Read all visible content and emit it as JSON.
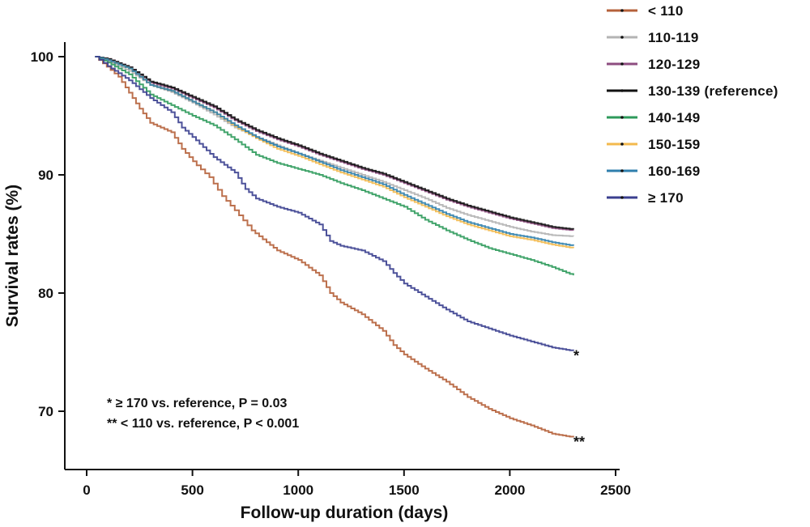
{
  "chart_data": {
    "type": "line",
    "title": "",
    "xlabel": "Follow-up duration (days)",
    "ylabel": "Survival rates (%)",
    "xlim": [
      0,
      2500
    ],
    "ylim": [
      65,
      101
    ],
    "xticks": [
      0,
      500,
      1000,
      1500,
      2000,
      2500
    ],
    "yticks": [
      70,
      80,
      90,
      100
    ],
    "grid": false,
    "legend_position": "top-right",
    "series": [
      {
        "name": "< 110",
        "color": "#b5603a",
        "points": [
          [
            40,
            100
          ],
          [
            150,
            98.3
          ],
          [
            250,
            95.6
          ],
          [
            300,
            94.4
          ],
          [
            400,
            93.6
          ],
          [
            450,
            92.2
          ],
          [
            520,
            90.8
          ],
          [
            580,
            89.8
          ],
          [
            640,
            88.2
          ],
          [
            700,
            87
          ],
          [
            780,
            85.3
          ],
          [
            850,
            84.3
          ],
          [
            900,
            83.6
          ],
          [
            1000,
            82.8
          ],
          [
            1100,
            81.5
          ],
          [
            1150,
            80
          ],
          [
            1200,
            79.2
          ],
          [
            1300,
            78.2
          ],
          [
            1400,
            76.8
          ],
          [
            1450,
            75.6
          ],
          [
            1500,
            74.8
          ],
          [
            1600,
            73.6
          ],
          [
            1700,
            72.5
          ],
          [
            1800,
            71.2
          ],
          [
            1900,
            70.2
          ],
          [
            2000,
            69.4
          ],
          [
            2100,
            68.8
          ],
          [
            2200,
            68.1
          ],
          [
            2300,
            67.8
          ]
        ]
      },
      {
        "name": "110-119",
        "color": "#b3b3b3",
        "points": [
          [
            40,
            100
          ],
          [
            100,
            99.6
          ],
          [
            200,
            98.8
          ],
          [
            300,
            97.6
          ],
          [
            400,
            97
          ],
          [
            500,
            96.1
          ],
          [
            600,
            95.1
          ],
          [
            700,
            94
          ],
          [
            800,
            93.2
          ],
          [
            900,
            92.5
          ],
          [
            1000,
            91.8
          ],
          [
            1100,
            91.2
          ],
          [
            1200,
            90.6
          ],
          [
            1300,
            90
          ],
          [
            1400,
            89.4
          ],
          [
            1500,
            88.7
          ],
          [
            1600,
            88
          ],
          [
            1700,
            87.2
          ],
          [
            1800,
            86.6
          ],
          [
            1900,
            86.1
          ],
          [
            2000,
            85.6
          ],
          [
            2100,
            85.2
          ],
          [
            2200,
            84.9
          ],
          [
            2300,
            84.8
          ]
        ]
      },
      {
        "name": "120-129",
        "color": "#8e4d80",
        "points": [
          [
            40,
            100
          ],
          [
            100,
            99.8
          ],
          [
            200,
            99.1
          ],
          [
            300,
            97.8
          ],
          [
            400,
            97.3
          ],
          [
            500,
            96.5
          ],
          [
            600,
            95.7
          ],
          [
            700,
            94.6
          ],
          [
            800,
            93.7
          ],
          [
            900,
            93
          ],
          [
            1000,
            92.4
          ],
          [
            1100,
            91.7
          ],
          [
            1200,
            91.1
          ],
          [
            1300,
            90.5
          ],
          [
            1400,
            90
          ],
          [
            1500,
            89.3
          ],
          [
            1600,
            88.6
          ],
          [
            1700,
            87.9
          ],
          [
            1800,
            87.3
          ],
          [
            1900,
            86.8
          ],
          [
            2000,
            86.3
          ],
          [
            2100,
            85.9
          ],
          [
            2200,
            85.5
          ],
          [
            2300,
            85.3
          ]
        ]
      },
      {
        "name": "130-139 (reference)",
        "color": "#111111",
        "points": [
          [
            40,
            100
          ],
          [
            100,
            99.8
          ],
          [
            200,
            99.1
          ],
          [
            300,
            97.9
          ],
          [
            400,
            97.4
          ],
          [
            500,
            96.6
          ],
          [
            600,
            95.8
          ],
          [
            700,
            94.7
          ],
          [
            800,
            93.8
          ],
          [
            900,
            93.1
          ],
          [
            1000,
            92.5
          ],
          [
            1100,
            91.8
          ],
          [
            1200,
            91.2
          ],
          [
            1300,
            90.6
          ],
          [
            1400,
            90.1
          ],
          [
            1500,
            89.4
          ],
          [
            1600,
            88.7
          ],
          [
            1700,
            88
          ],
          [
            1800,
            87.4
          ],
          [
            1900,
            86.9
          ],
          [
            2000,
            86.4
          ],
          [
            2100,
            86
          ],
          [
            2200,
            85.6
          ],
          [
            2300,
            85.4
          ]
        ]
      },
      {
        "name": "140-149",
        "color": "#2e9a5b",
        "points": [
          [
            40,
            100
          ],
          [
            100,
            99.5
          ],
          [
            200,
            98.5
          ],
          [
            300,
            96.8
          ],
          [
            400,
            95.9
          ],
          [
            500,
            95
          ],
          [
            600,
            94.2
          ],
          [
            700,
            93
          ],
          [
            800,
            91.7
          ],
          [
            900,
            91
          ],
          [
            1000,
            90.5
          ],
          [
            1100,
            90
          ],
          [
            1200,
            89.3
          ],
          [
            1300,
            88.7
          ],
          [
            1400,
            88
          ],
          [
            1500,
            87.3
          ],
          [
            1600,
            86.2
          ],
          [
            1700,
            85.3
          ],
          [
            1800,
            84.5
          ],
          [
            1900,
            83.8
          ],
          [
            2000,
            83.3
          ],
          [
            2100,
            82.8
          ],
          [
            2200,
            82.2
          ],
          [
            2300,
            81.5
          ]
        ]
      },
      {
        "name": "150-159",
        "color": "#f3b94d",
        "points": [
          [
            40,
            100
          ],
          [
            100,
            99.7
          ],
          [
            200,
            99
          ],
          [
            300,
            97.6
          ],
          [
            400,
            97.1
          ],
          [
            500,
            96.2
          ],
          [
            600,
            95.3
          ],
          [
            700,
            94.1
          ],
          [
            800,
            93.1
          ],
          [
            900,
            92.2
          ],
          [
            1000,
            91.6
          ],
          [
            1100,
            90.9
          ],
          [
            1200,
            90.2
          ],
          [
            1300,
            89.6
          ],
          [
            1400,
            89
          ],
          [
            1500,
            88.1
          ],
          [
            1600,
            87.3
          ],
          [
            1700,
            86.5
          ],
          [
            1800,
            85.8
          ],
          [
            1900,
            85.3
          ],
          [
            2000,
            84.8
          ],
          [
            2100,
            84.5
          ],
          [
            2200,
            84.1
          ],
          [
            2300,
            83.8
          ]
        ]
      },
      {
        "name": "160-169",
        "color": "#2f7fad",
        "points": [
          [
            40,
            100
          ],
          [
            100,
            99.7
          ],
          [
            200,
            99
          ],
          [
            300,
            97.6
          ],
          [
            400,
            97.1
          ],
          [
            500,
            96.2
          ],
          [
            600,
            95.3
          ],
          [
            700,
            94.2
          ],
          [
            800,
            93.2
          ],
          [
            900,
            92.4
          ],
          [
            1000,
            91.8
          ],
          [
            1100,
            91.1
          ],
          [
            1200,
            90.4
          ],
          [
            1300,
            89.8
          ],
          [
            1400,
            89.2
          ],
          [
            1500,
            88.3
          ],
          [
            1600,
            87.5
          ],
          [
            1700,
            86.7
          ],
          [
            1800,
            86
          ],
          [
            1900,
            85.5
          ],
          [
            2000,
            85
          ],
          [
            2100,
            84.7
          ],
          [
            2200,
            84.3
          ],
          [
            2300,
            84
          ]
        ]
      },
      {
        "name": "≥ 170",
        "color": "#3a3f8f",
        "points": [
          [
            40,
            100
          ],
          [
            100,
            99.2
          ],
          [
            200,
            98
          ],
          [
            300,
            96.5
          ],
          [
            400,
            95.3
          ],
          [
            450,
            94
          ],
          [
            500,
            93.2
          ],
          [
            600,
            91.5
          ],
          [
            700,
            90.2
          ],
          [
            750,
            88.8
          ],
          [
            800,
            88
          ],
          [
            900,
            87.3
          ],
          [
            1000,
            86.8
          ],
          [
            1100,
            85.8
          ],
          [
            1150,
            84.4
          ],
          [
            1200,
            84
          ],
          [
            1300,
            83.6
          ],
          [
            1400,
            82.7
          ],
          [
            1450,
            81.7
          ],
          [
            1500,
            80.8
          ],
          [
            1600,
            79.7
          ],
          [
            1700,
            78.6
          ],
          [
            1800,
            77.6
          ],
          [
            1900,
            77
          ],
          [
            2000,
            76.4
          ],
          [
            2100,
            75.9
          ],
          [
            2200,
            75.4
          ],
          [
            2300,
            75.1
          ]
        ]
      }
    ],
    "annotations": {
      "star_marks": [
        {
          "text": "*",
          "x": 2370,
          "y": 75.1
        },
        {
          "text": "**",
          "x": 2370,
          "y": 67.8
        }
      ],
      "notes": [
        "*  ≥ 170 vs. reference, P = 0.03",
        "** < 110 vs. reference, P < 0.001"
      ]
    }
  }
}
